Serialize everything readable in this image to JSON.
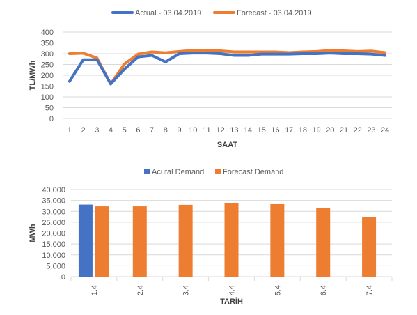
{
  "chart_data": [
    {
      "type": "line",
      "legend_position": "top-center",
      "xlabel": "SAAT",
      "ylabel": "TL/MWh",
      "ylim": [
        0,
        400
      ],
      "yticks": [
        "0",
        "50",
        "100",
        "150",
        "200",
        "250",
        "300",
        "350",
        "400"
      ],
      "yticks_values": [
        0,
        50,
        100,
        150,
        200,
        250,
        300,
        350,
        400
      ],
      "categories": [
        "1",
        "2",
        "3",
        "4",
        "5",
        "6",
        "7",
        "8",
        "9",
        "10",
        "11",
        "12",
        "13",
        "14",
        "15",
        "16",
        "17",
        "18",
        "19",
        "20",
        "21",
        "22",
        "23",
        "24"
      ],
      "grid": true,
      "series": [
        {
          "name": "Actual - 03.04.2019",
          "color": "#4472C4",
          "values": [
            172,
            272,
            272,
            160,
            228,
            285,
            292,
            262,
            300,
            303,
            303,
            300,
            292,
            292,
            298,
            298,
            298,
            300,
            300,
            303,
            300,
            300,
            298,
            292
          ]
        },
        {
          "name": "Forecast - 03.04.2019",
          "color": "#ED7D31",
          "values": [
            300,
            302,
            280,
            160,
            252,
            298,
            308,
            304,
            310,
            315,
            315,
            313,
            308,
            308,
            308,
            308,
            305,
            308,
            310,
            315,
            313,
            310,
            312,
            305
          ]
        }
      ]
    },
    {
      "type": "bar",
      "legend_position": "top-center",
      "xlabel": "TARİH",
      "ylabel": "MWh",
      "ylim": [
        0,
        40000
      ],
      "yticks": [
        "0",
        "5.000",
        "10.000",
        "15.000",
        "20.000",
        "25.000",
        "30.000",
        "35.000",
        "40.000"
      ],
      "yticks_values": [
        0,
        5000,
        10000,
        15000,
        20000,
        25000,
        30000,
        35000,
        40000
      ],
      "categories": [
        "1.4",
        "2.4",
        "3.4",
        "4.4",
        "5.4",
        "6.4",
        "7.4"
      ],
      "grid": true,
      "series": [
        {
          "name": "Acutal Demand",
          "color": "#4472C4",
          "values": [
            33100,
            null,
            null,
            null,
            null,
            null,
            null
          ]
        },
        {
          "name": "Forecast Demand",
          "color": "#ED7D31",
          "values": [
            32300,
            32300,
            33000,
            33600,
            33300,
            31400,
            27400
          ]
        }
      ]
    }
  ]
}
